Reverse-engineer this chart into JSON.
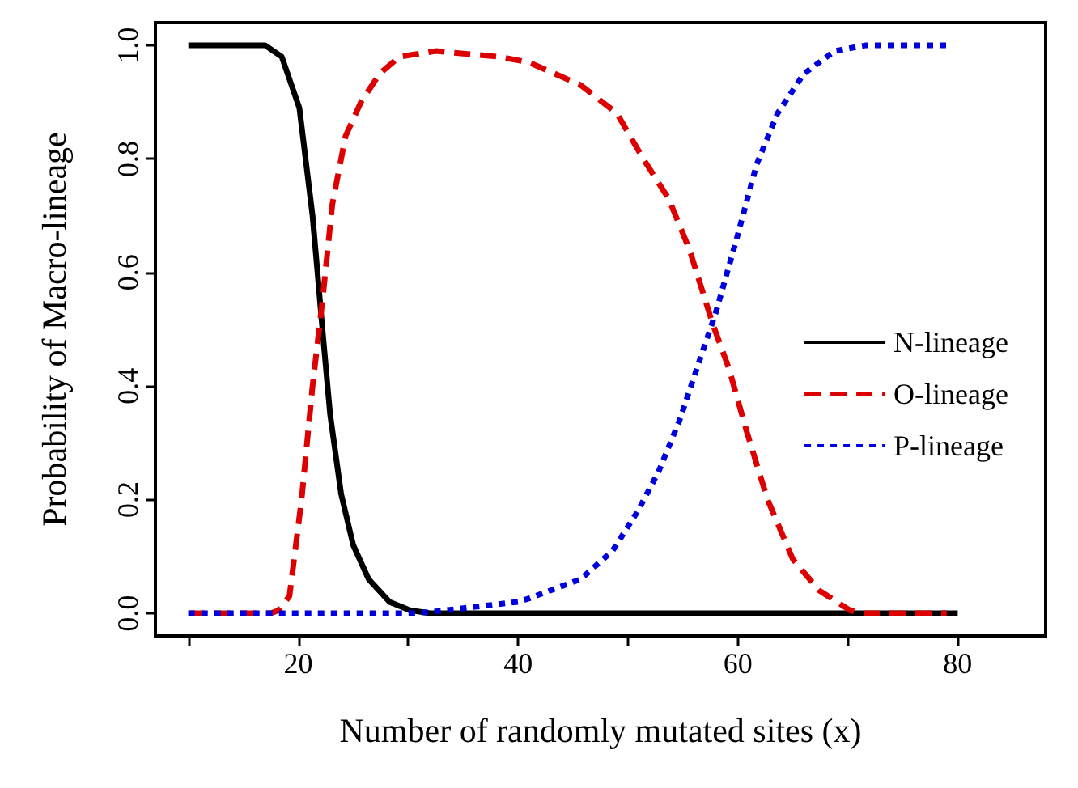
{
  "chart_data": {
    "type": "line",
    "xlabel": "Number of randomly mutated sites (x)",
    "ylabel": "Probability of Macro-lineage",
    "xlim": [
      7,
      88
    ],
    "ylim": [
      -0.04,
      1.04
    ],
    "xticks": [
      {
        "value": 10,
        "label": null
      },
      20,
      {
        "value": 30,
        "label": null
      },
      40,
      {
        "value": 50,
        "label": null
      },
      60,
      {
        "value": 70,
        "label": null
      },
      80
    ],
    "yticks": [
      {
        "value": 0,
        "label": "0.0"
      },
      {
        "value": 0.2,
        "label": "0.2"
      },
      {
        "value": 0.4,
        "label": "0.4"
      },
      {
        "value": 0.6,
        "label": "0.6"
      },
      {
        "value": 0.8,
        "label": "0.8"
      },
      {
        "value": 1,
        "label": "1.0"
      }
    ],
    "grid": false,
    "legend": "right",
    "marker": "none",
    "series": [
      {
        "name": "N-lineage",
        "color": "#000000",
        "line_style": "solid",
        "x": [
          10,
          17,
          18.5,
          20.1,
          21.3,
          22.2,
          22.9,
          23.9,
          25,
          26.4,
          28.3,
          30.2,
          32,
          80
        ],
        "values": [
          1,
          1,
          0.98,
          0.89,
          0.7,
          0.5,
          0.35,
          0.21,
          0.12,
          0.06,
          0.02,
          0.005,
          0,
          0
        ]
      },
      {
        "name": "O-lineage",
        "color": "#dd0000",
        "line_style": "dashed",
        "x": [
          10,
          17.5,
          18.2,
          19.2,
          20.3,
          21.3,
          22.2,
          23.1,
          24.3,
          25.7,
          27.4,
          29.2,
          32.5,
          38.2,
          41,
          45.7,
          49,
          51.4,
          53.7,
          55.6,
          57.7,
          59.2,
          60.8,
          62.7,
          65,
          67.4,
          70.2,
          71.2,
          79
        ],
        "values": [
          0,
          0,
          0.005,
          0.03,
          0.2,
          0.4,
          0.55,
          0.72,
          0.84,
          0.9,
          0.95,
          0.98,
          0.99,
          0.98,
          0.97,
          0.93,
          0.88,
          0.8,
          0.73,
          0.64,
          0.51,
          0.43,
          0.32,
          0.2,
          0.095,
          0.04,
          0.005,
          0,
          0
        ]
      },
      {
        "name": "P-lineage",
        "color": "#0000dd",
        "line_style": "dotted",
        "x": [
          10,
          30,
          32,
          40,
          41,
          45.7,
          48.6,
          50.9,
          52.8,
          54.7,
          56.6,
          58,
          59.9,
          61.7,
          63.6,
          66,
          68.8,
          71.6,
          79
        ],
        "values": [
          0,
          0,
          0.002,
          0.02,
          0.026,
          0.06,
          0.11,
          0.18,
          0.25,
          0.34,
          0.45,
          0.53,
          0.66,
          0.79,
          0.88,
          0.95,
          0.99,
          1,
          1
        ]
      }
    ]
  }
}
